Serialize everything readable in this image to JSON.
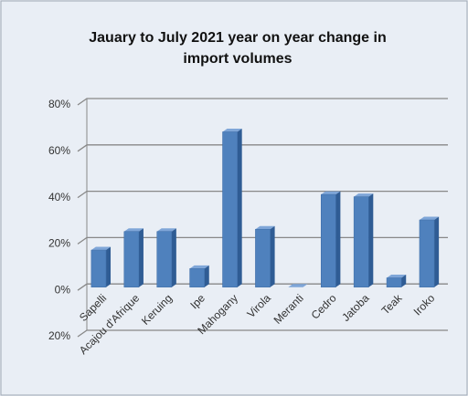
{
  "chart_data": {
    "type": "bar3d",
    "title": "Jauary to July 2021 year on year change in import volumes",
    "categories": [
      "Sapelli",
      "Acajou d'Afrique",
      "Keruing",
      "Ipe",
      "Mahogany",
      "Virola",
      "Meranti",
      "Cedro",
      "Jatoba",
      "Teak",
      "Iroko"
    ],
    "values": [
      16,
      24,
      24,
      8,
      67,
      25,
      0,
      40,
      39,
      4,
      29
    ],
    "color": "#4f81bd",
    "ylim": [
      -20,
      80
    ],
    "yticks": [
      {
        "value": -20,
        "label": "20%"
      },
      {
        "value": 0,
        "label": "0%"
      },
      {
        "value": 20,
        "label": "20%"
      },
      {
        "value": 40,
        "label": "40%"
      },
      {
        "value": 60,
        "label": "60%"
      },
      {
        "value": 80,
        "label": "80%"
      }
    ],
    "grid": true
  }
}
